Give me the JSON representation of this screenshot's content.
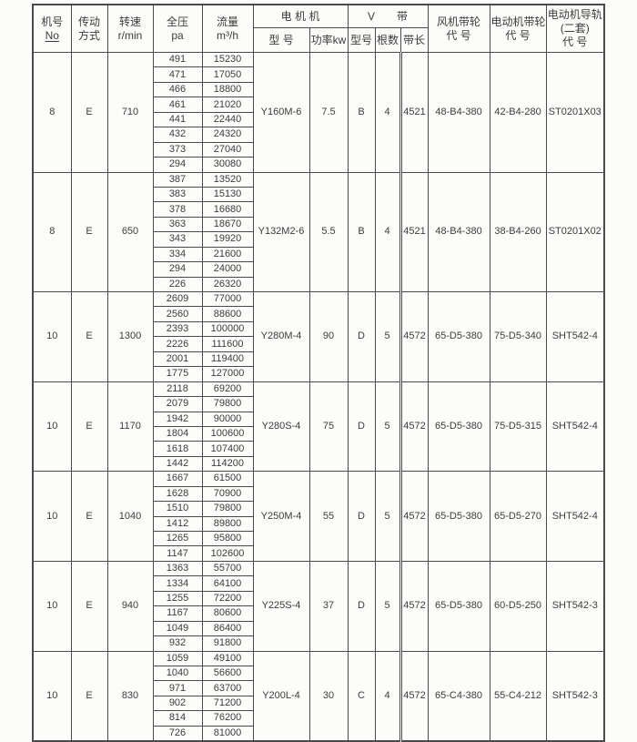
{
  "table": {
    "header": {
      "fan_no_line1": "机号",
      "fan_no_line2": "No",
      "drive_line1": "传动",
      "drive_line2": "方式",
      "speed_line1": "转速",
      "speed_line2": "r/min",
      "pressure_line1": "全压",
      "pressure_line2": "pa",
      "flow_line1": "流量",
      "flow_line2": "m³/h",
      "group_motor": "电 机 机",
      "motor_model": "型 号",
      "motor_power": "功率kw",
      "group_vbelt": "V　　带",
      "vbelt_model": "型号",
      "vbelt_count": "根数",
      "vbelt_length": "带长",
      "fan_pulley_line1": "风机带轮",
      "fan_pulley_line2": "代 号",
      "motor_pulley_line1": "电动机带轮",
      "motor_pulley_line2": "代 号",
      "rail_line1": "电动机导轨",
      "rail_line2": "(二套)",
      "rail_line3": "代 号"
    },
    "blocks": [
      {
        "no": "8",
        "drive": "E",
        "speed": "710",
        "rows": [
          [
            "491",
            "15230"
          ],
          [
            "471",
            "17050"
          ],
          [
            "466",
            "18800"
          ],
          [
            "461",
            "21020"
          ],
          [
            "441",
            "22440"
          ],
          [
            "432",
            "24320"
          ],
          [
            "373",
            "27040"
          ],
          [
            "294",
            "30080"
          ]
        ],
        "motor_model": "Y160M-6",
        "power": "7.5",
        "belt_type": "B",
        "belt_count": "4",
        "belt_length": "4521",
        "fan_pulley": "48-B4-380",
        "motor_pulley": "42-B4-280",
        "rail": "ST0201X03"
      },
      {
        "no": "8",
        "drive": "E",
        "speed": "650",
        "rows": [
          [
            "387",
            "13520"
          ],
          [
            "383",
            "15130"
          ],
          [
            "378",
            "16680"
          ],
          [
            "363",
            "18670"
          ],
          [
            "343",
            "19920"
          ],
          [
            "334",
            "21600"
          ],
          [
            "294",
            "24000"
          ],
          [
            "226",
            "26320"
          ]
        ],
        "motor_model": "Y132M2-6",
        "power": "5.5",
        "belt_type": "B",
        "belt_count": "4",
        "belt_length": "4521",
        "fan_pulley": "48-B4-380",
        "motor_pulley": "38-B4-260",
        "rail": "ST0201X02"
      },
      {
        "no": "10",
        "drive": "E",
        "speed": "1300",
        "rows": [
          [
            "2609",
            "77000"
          ],
          [
            "2560",
            "88600"
          ],
          [
            "2393",
            "100000"
          ],
          [
            "2226",
            "111600"
          ],
          [
            "2001",
            "119400"
          ],
          [
            "1775",
            "127000"
          ]
        ],
        "motor_model": "Y280M-4",
        "power": "90",
        "belt_type": "D",
        "belt_count": "5",
        "belt_length": "4572",
        "fan_pulley": "65-D5-380",
        "motor_pulley": "75-D5-340",
        "rail": "SHT542-4"
      },
      {
        "no": "10",
        "drive": "E",
        "speed": "1170",
        "rows": [
          [
            "2118",
            "69200"
          ],
          [
            "2079",
            "79800"
          ],
          [
            "1942",
            "90000"
          ],
          [
            "1804",
            "100600"
          ],
          [
            "1618",
            "107400"
          ],
          [
            "1442",
            "114200"
          ]
        ],
        "motor_model": "Y280S-4",
        "power": "75",
        "belt_type": "D",
        "belt_count": "5",
        "belt_length": "4572",
        "fan_pulley": "65-D5-380",
        "motor_pulley": "75-D5-315",
        "rail": "SHT542-4"
      },
      {
        "no": "10",
        "drive": "E",
        "speed": "1040",
        "rows": [
          [
            "1667",
            "61500"
          ],
          [
            "1628",
            "70900"
          ],
          [
            "1510",
            "79800"
          ],
          [
            "1412",
            "89800"
          ],
          [
            "1265",
            "95800"
          ],
          [
            "1147",
            "102600"
          ]
        ],
        "motor_model": "Y250M-4",
        "power": "55",
        "belt_type": "D",
        "belt_count": "5",
        "belt_length": "4572",
        "fan_pulley": "65-D5-380",
        "motor_pulley": "65-D5-270",
        "rail": "SHT542-4"
      },
      {
        "no": "10",
        "drive": "E",
        "speed": "940",
        "rows": [
          [
            "1363",
            "55700"
          ],
          [
            "1334",
            "64100"
          ],
          [
            "1255",
            "72200"
          ],
          [
            "1167",
            "80600"
          ],
          [
            "1049",
            "86400"
          ],
          [
            "932",
            "91800"
          ]
        ],
        "motor_model": "Y225S-4",
        "power": "37",
        "belt_type": "D",
        "belt_count": "5",
        "belt_length": "4572",
        "fan_pulley": "65-D5-380",
        "motor_pulley": "60-D5-250",
        "rail": "SHT542-3"
      },
      {
        "no": "10",
        "drive": "E",
        "speed": "830",
        "rows": [
          [
            "1059",
            "49100"
          ],
          [
            "1040",
            "56600"
          ],
          [
            "971",
            "63700"
          ],
          [
            "902",
            "71200"
          ],
          [
            "814",
            "76200"
          ],
          [
            "726",
            "81000"
          ]
        ],
        "motor_model": "Y200L-4",
        "power": "30",
        "belt_type": "C",
        "belt_count": "4",
        "belt_length": "4572",
        "fan_pulley": "65-C4-380",
        "motor_pulley": "55-C4-212",
        "rail": "SHT542-3"
      }
    ]
  }
}
